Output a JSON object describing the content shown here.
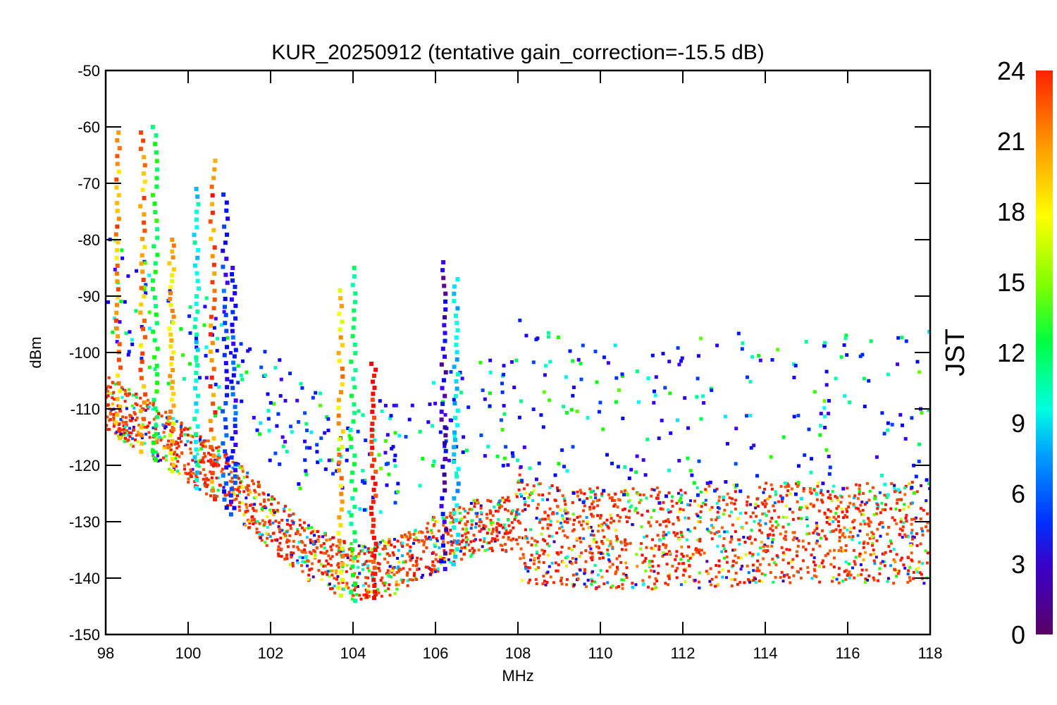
{
  "chart_data": {
    "type": "scatter",
    "title": "KUR_20250912 (tentative gain_correction=-15.5 dB)",
    "xlabel": "MHz",
    "ylabel": "dBm",
    "xlim": [
      98,
      118
    ],
    "ylim": [
      -150,
      -50
    ],
    "x_ticks": [
      "98",
      "100",
      "102",
      "104",
      "106",
      "108",
      "110",
      "112",
      "114",
      "116",
      "118"
    ],
    "y_ticks": [
      "-50",
      "-60",
      "-70",
      "-80",
      "-90",
      "-100",
      "-110",
      "-120",
      "-130",
      "-140",
      "-150"
    ],
    "colorbar": {
      "label": "JST",
      "range": [
        0,
        24
      ],
      "ticks": [
        "0",
        "3",
        "6",
        "9",
        "12",
        "15",
        "18",
        "21",
        "24"
      ],
      "colormap": "rainbow"
    },
    "noise_floor": [
      {
        "x": 98.0,
        "y": -114
      },
      {
        "x": 99.0,
        "y": -118
      },
      {
        "x": 100.0,
        "y": -123
      },
      {
        "x": 101.0,
        "y": -128
      },
      {
        "x": 102.0,
        "y": -135
      },
      {
        "x": 103.0,
        "y": -141
      },
      {
        "x": 104.0,
        "y": -144
      },
      {
        "x": 105.0,
        "y": -143
      },
      {
        "x": 106.0,
        "y": -139
      },
      {
        "x": 107.0,
        "y": -136
      },
      {
        "x": 108.0,
        "y": -135
      },
      {
        "x": 108.1,
        "y": -141
      },
      {
        "x": 110.0,
        "y": -142
      },
      {
        "x": 112.0,
        "y": -142
      },
      {
        "x": 114.0,
        "y": -141
      },
      {
        "x": 116.0,
        "y": -141
      },
      {
        "x": 118.0,
        "y": -141
      }
    ],
    "peaks": [
      {
        "x": 98.3,
        "y": -61,
        "jst": 21
      },
      {
        "x": 98.9,
        "y": -61,
        "jst": 21
      },
      {
        "x": 99.2,
        "y": -60,
        "jst": 13
      },
      {
        "x": 99.6,
        "y": -80,
        "jst": 20
      },
      {
        "x": 100.2,
        "y": -71,
        "jst": 9
      },
      {
        "x": 100.6,
        "y": -66,
        "jst": 22
      },
      {
        "x": 100.9,
        "y": -72,
        "jst": 4
      },
      {
        "x": 101.1,
        "y": -85,
        "jst": 4
      },
      {
        "x": 103.7,
        "y": -89,
        "jst": 20
      },
      {
        "x": 104.0,
        "y": -85,
        "jst": 12
      },
      {
        "x": 104.5,
        "y": -102,
        "jst": 24
      },
      {
        "x": 106.2,
        "y": -84,
        "jst": 2
      },
      {
        "x": 106.5,
        "y": -87,
        "jst": 8
      }
    ]
  }
}
